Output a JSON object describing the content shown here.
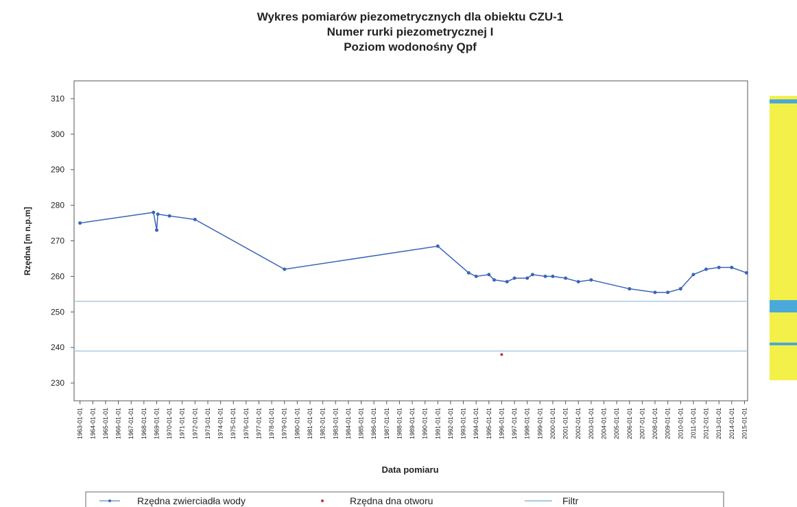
{
  "chart_data": {
    "type": "line",
    "title": [
      "Wykres pomiarów piezometrycznych dla obiektu CZU-1",
      "Numer rurki piezometrycznej I",
      "Poziom wodonośny Qpf"
    ],
    "x_label": "Data pomiaru",
    "y_label": "Rzędna [m n.p.m]",
    "xlim": [
      "1962-07-15",
      "2015-04-01"
    ],
    "ylim": [
      225,
      315
    ],
    "yticks": [
      230,
      240,
      250,
      260,
      270,
      280,
      290,
      300,
      310
    ],
    "xticks": [
      "1963-01-01",
      "1964-01-01",
      "1965-01-01",
      "1966-01-01",
      "1967-01-01",
      "1968-01-01",
      "1969-01-01",
      "1970-01-01",
      "1971-01-01",
      "1972-01-01",
      "1973-01-01",
      "1974-01-01",
      "1975-01-01",
      "1976-01-01",
      "1977-01-01",
      "1978-01-01",
      "1979-01-01",
      "1980-01-01",
      "1981-01-01",
      "1982-01-01",
      "1983-01-01",
      "1984-01-01",
      "1985-01-01",
      "1986-01-01",
      "1987-01-01",
      "1988-01-01",
      "1989-01-01",
      "1990-01-01",
      "1991-01-01",
      "1992-01-01",
      "1993-01-01",
      "1994-01-01",
      "1995-01-01",
      "1996-01-01",
      "1997-01-01",
      "1998-01-01",
      "1999-01-01",
      "2000-01-01",
      "2001-01-01",
      "2002-01-01",
      "2003-01-01",
      "2004-01-01",
      "2005-01-01",
      "2006-01-01",
      "2007-01-01",
      "2008-01-01",
      "2009-01-01",
      "2010-01-01",
      "2011-01-01",
      "2012-01-01",
      "2013-01-01",
      "2014-01-01",
      "2015-01-01"
    ],
    "series": [
      {
        "name": "Rzędna zwierciadła wody",
        "color": "#3a64b8",
        "kind": "line",
        "x": [
          "1963-01-01",
          "1968-10-01",
          "1969-01-01",
          "1969-02-01",
          "1970-01-01",
          "1972-01-01",
          "1979-01-01",
          "1991-01-01",
          "1993-06-01",
          "1994-01-01",
          "1995-01-01",
          "1995-06-01",
          "1996-06-01",
          "1997-01-01",
          "1998-01-01",
          "1998-06-01",
          "1999-06-01",
          "2000-01-01",
          "2001-01-01",
          "2002-01-01",
          "2003-01-01",
          "2006-01-01",
          "2008-01-01",
          "2009-01-01",
          "2010-01-01",
          "2011-01-01",
          "2012-01-01",
          "2013-01-01",
          "2014-01-01",
          "2015-03-01"
        ],
        "values": [
          275,
          278,
          273,
          277.5,
          277,
          276,
          262,
          268.5,
          261,
          260,
          260.5,
          259,
          258.5,
          259.5,
          259.5,
          260.5,
          260,
          260,
          259.5,
          258.5,
          259,
          256.5,
          255.5,
          255.5,
          256.5,
          260.5,
          262,
          262.5,
          262.5,
          261
        ]
      },
      {
        "name": "Rzędna dna otworu",
        "color": "#c0303a",
        "kind": "point",
        "x": [
          "1996-01-01"
        ],
        "values": [
          238
        ]
      },
      {
        "name": "Filtr",
        "color": "#a9c8e0",
        "kind": "hline",
        "values": [
          253,
          239
        ]
      }
    ]
  }
}
